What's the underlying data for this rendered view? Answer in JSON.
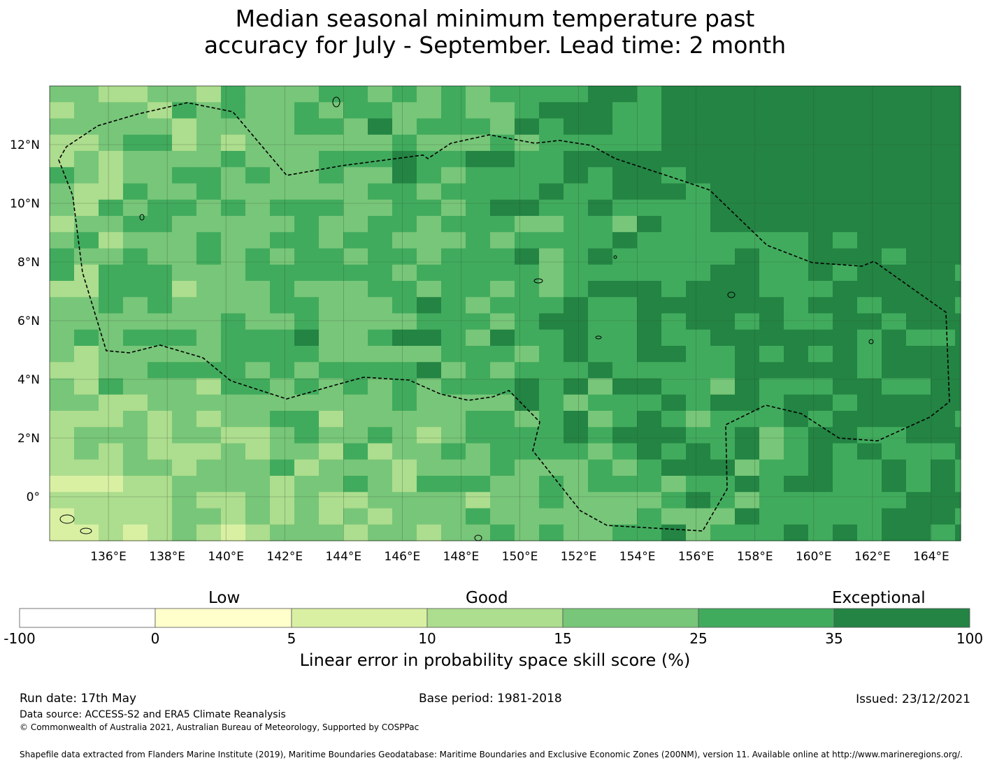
{
  "title": {
    "line1": "Median seasonal minimum temperature past",
    "line2": "accuracy for July - September. Lead time: 2 month"
  },
  "map": {
    "lon_labels": [
      "136°E",
      "138°E",
      "140°E",
      "142°E",
      "144°E",
      "146°E",
      "148°E",
      "150°E",
      "152°E",
      "154°E",
      "156°E",
      "158°E",
      "160°E",
      "162°E",
      "164°E"
    ],
    "lat_labels": [
      "12°N",
      "10°N",
      "8°N",
      "6°N",
      "4°N",
      "2°N",
      "0°"
    ],
    "lon_range": [
      134.0,
      165.0
    ],
    "lat_range": [
      -1.5,
      14.0
    ],
    "grid": true,
    "boundary_style": "dashed",
    "pattern_seed": 7
  },
  "legend": {
    "category_labels": {
      "low": "Low",
      "good": "Good",
      "exceptional": "Exceptional"
    },
    "ticks": [
      "-100",
      "0",
      "5",
      "10",
      "15",
      "25",
      "35",
      "100"
    ],
    "colors": [
      "#ffffff",
      "#ffffcc",
      "#d9f0a3",
      "#addd8e",
      "#78c679",
      "#41ab5d",
      "#238443"
    ],
    "title": "Linear error in probability space skill score (%)"
  },
  "footer": {
    "run_date": "Run date: 17th May",
    "base_period": "Base period: 1981-2018",
    "issued": "Issued: 23/12/2021",
    "data_source": "Data source: ACCESS-S2 and ERA5 Climate Reanalysis",
    "copyright": "© Commonwealth of Australia 2021, Australian Bureau of Meteorology, Supported by COSPPac",
    "shapefile": "Shapefile data extracted from Flanders Marine Institute (2019), Maritime Boundaries Geodatabase: Maritime Boundaries and Exclusive Economic Zones (200NM), version 11. Available online at http://www.marineregions.org/."
  }
}
